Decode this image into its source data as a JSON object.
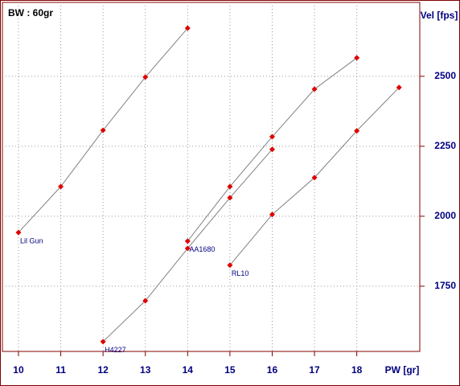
{
  "chart_data": {
    "type": "line",
    "title": "BW : 60gr",
    "x_label": "PW [gr]",
    "y_label": "Vel [fps]",
    "xlim": [
      9.62,
      19.49
    ],
    "ylim": [
      1517,
      2764
    ],
    "xticks": [
      10,
      11,
      12,
      13,
      14,
      15,
      16,
      17,
      18
    ],
    "yticks": [
      1750,
      2000,
      2250,
      2500
    ],
    "grid": true,
    "line_color": "#808080",
    "marker_color": "#e00000",
    "series": [
      {
        "name": "Lil Gun",
        "x": [
          10,
          11,
          12,
          13,
          14
        ],
        "values": [
          1942,
          2106,
          2307,
          2497,
          2672
        ]
      },
      {
        "name": "H4227",
        "x": [
          12,
          13,
          14,
          15,
          16
        ],
        "values": [
          1552,
          1698,
          1885,
          2066,
          2239
        ]
      },
      {
        "name": "AA1680",
        "x": [
          14,
          15,
          16,
          17,
          18
        ],
        "values": [
          1911,
          2106,
          2284,
          2454,
          2566
        ]
      },
      {
        "name": "RL10",
        "x": [
          15,
          16,
          17,
          18,
          19
        ],
        "values": [
          1825,
          2006,
          2138,
          2305,
          2460
        ]
      }
    ]
  }
}
